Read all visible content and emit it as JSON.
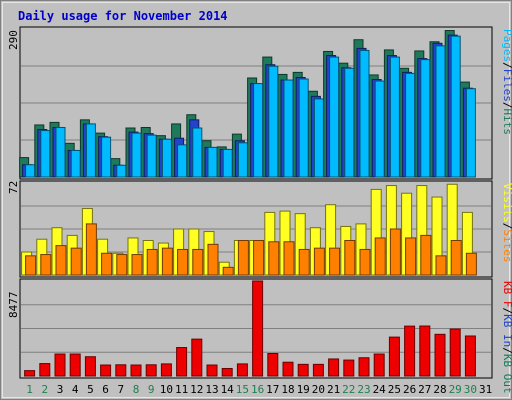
{
  "title": "Daily usage for November 2014",
  "colors": {
    "background": "#C0C0C0",
    "panel_border": "#000000",
    "title": "#0000CC",
    "hits": "#1F7A5C",
    "files": "#2244CC",
    "pages": "#00BBFF",
    "visits": "#FFFF22",
    "sites": "#FF8000",
    "kb_f": "#EE0000",
    "kb_in": "#1E40C8",
    "kb_out": "#157A55",
    "weekend_day": "#1E8050",
    "weekday_day": "#000000"
  },
  "chart_data": [
    {
      "type": "bar",
      "panel": "top",
      "ylim": [
        0,
        290
      ],
      "ytick_label": "290",
      "legend": [
        {
          "text": "Pages",
          "color": "#00BBFF"
        },
        {
          "text": "/",
          "color": "#000000"
        },
        {
          "text": "Files",
          "color": "#2244CC"
        },
        {
          "text": "/",
          "color": "#000000"
        },
        {
          "text": "Hits",
          "color": "#1F7A5C"
        }
      ],
      "categories": [
        "1",
        "2",
        "3",
        "4",
        "5",
        "6",
        "7",
        "8",
        "9",
        "10",
        "11",
        "12",
        "13",
        "14",
        "15",
        "16",
        "17",
        "18",
        "19",
        "20",
        "21",
        "22",
        "23",
        "24",
        "25",
        "26",
        "27",
        "28",
        "29",
        "30",
        "31"
      ],
      "series": [
        {
          "name": "Hits",
          "color": "#1F7A5C",
          "values": [
            38,
            102,
            107,
            66,
            112,
            86,
            36,
            96,
            97,
            81,
            104,
            122,
            71,
            59,
            84,
            194,
            235,
            201,
            205,
            168,
            246,
            223,
            269,
            200,
            249,
            213,
            247,
            265,
            287,
            186,
            null
          ]
        },
        {
          "name": "Files",
          "color": "#2244CC",
          "values": [
            24,
            93,
            97,
            52,
            104,
            79,
            23,
            88,
            85,
            74,
            76,
            112,
            58,
            54,
            71,
            183,
            220,
            190,
            195,
            158,
            238,
            214,
            252,
            191,
            238,
            205,
            232,
            262,
            278,
            174,
            null
          ]
        },
        {
          "name": "Pages",
          "color": "#00BBFF",
          "values": [
            24,
            91,
            97,
            52,
            104,
            78,
            23,
            86,
            82,
            74,
            63,
            96,
            58,
            54,
            67,
            183,
            217,
            190,
            192,
            153,
            235,
            213,
            248,
            188,
            235,
            203,
            230,
            257,
            276,
            173,
            null
          ]
        }
      ]
    },
    {
      "type": "bar",
      "panel": "middle",
      "ylim": [
        0,
        72
      ],
      "ytick_label": "72",
      "legend": [
        {
          "text": "Visits",
          "color": "#FFFF22"
        },
        {
          "text": "/",
          "color": "#000000"
        },
        {
          "text": "Sites",
          "color": "#FF8000"
        }
      ],
      "categories": [
        "1",
        "2",
        "3",
        "4",
        "5",
        "6",
        "7",
        "8",
        "9",
        "10",
        "11",
        "12",
        "13",
        "14",
        "15",
        "16",
        "17",
        "18",
        "19",
        "20",
        "21",
        "22",
        "23",
        "24",
        "25",
        "26",
        "27",
        "28",
        "29",
        "30",
        "31"
      ],
      "series": [
        {
          "name": "Visits",
          "color": "#FFFF22",
          "values": [
            18,
            28,
            37,
            31,
            52,
            28,
            17,
            29,
            27,
            25,
            36,
            36,
            34,
            10,
            27,
            27,
            49,
            50,
            48,
            37,
            55,
            38,
            40,
            67,
            70,
            64,
            70,
            61,
            71,
            49,
            null
          ]
        },
        {
          "name": "Sites",
          "color": "#FF8000",
          "values": [
            15,
            16,
            23,
            21,
            40,
            17,
            16,
            16,
            20,
            21,
            20,
            20,
            24,
            6,
            27,
            27,
            26,
            26,
            20,
            21,
            21,
            27,
            20,
            29,
            36,
            29,
            31,
            15,
            27,
            17,
            null
          ]
        }
      ]
    },
    {
      "type": "bar",
      "panel": "bottom",
      "ylim": [
        0,
        8477
      ],
      "ytick_label": "8477",
      "legend": [
        {
          "text": "KB F",
          "color": "#EE0000"
        },
        {
          "text": "/",
          "color": "#000000"
        },
        {
          "text": "KB In",
          "color": "#1E40C8"
        },
        {
          "text": "/",
          "color": "#000000"
        },
        {
          "text": "KB Out",
          "color": "#157A55"
        }
      ],
      "categories": [
        "1",
        "2",
        "3",
        "4",
        "5",
        "6",
        "7",
        "8",
        "9",
        "10",
        "11",
        "12",
        "13",
        "14",
        "15",
        "16",
        "17",
        "18",
        "19",
        "20",
        "21",
        "22",
        "23",
        "24",
        "25",
        "26",
        "27",
        "28",
        "29",
        "30",
        "31"
      ],
      "series": [
        {
          "name": "KB F",
          "color": "#EE0000",
          "values": [
            480,
            1110,
            1960,
            1960,
            1720,
            980,
            1000,
            980,
            1000,
            1080,
            2540,
            3290,
            980,
            670,
            1080,
            8477,
            2010,
            1230,
            1040,
            1040,
            1520,
            1420,
            1630,
            1960,
            3470,
            4450,
            4460,
            3720,
            4190,
            3570,
            null
          ]
        }
      ]
    }
  ],
  "days": [
    {
      "label": "1",
      "weekend": true
    },
    {
      "label": "2",
      "weekend": true
    },
    {
      "label": "3",
      "weekend": false
    },
    {
      "label": "4",
      "weekend": false
    },
    {
      "label": "5",
      "weekend": false
    },
    {
      "label": "6",
      "weekend": false
    },
    {
      "label": "7",
      "weekend": false
    },
    {
      "label": "8",
      "weekend": true
    },
    {
      "label": "9",
      "weekend": true
    },
    {
      "label": "10",
      "weekend": false
    },
    {
      "label": "11",
      "weekend": false
    },
    {
      "label": "12",
      "weekend": false
    },
    {
      "label": "13",
      "weekend": false
    },
    {
      "label": "14",
      "weekend": false
    },
    {
      "label": "15",
      "weekend": true
    },
    {
      "label": "16",
      "weekend": true
    },
    {
      "label": "17",
      "weekend": false
    },
    {
      "label": "18",
      "weekend": false
    },
    {
      "label": "19",
      "weekend": false
    },
    {
      "label": "20",
      "weekend": false
    },
    {
      "label": "21",
      "weekend": false
    },
    {
      "label": "22",
      "weekend": true
    },
    {
      "label": "23",
      "weekend": true
    },
    {
      "label": "24",
      "weekend": false
    },
    {
      "label": "25",
      "weekend": false
    },
    {
      "label": "26",
      "weekend": false
    },
    {
      "label": "27",
      "weekend": false
    },
    {
      "label": "28",
      "weekend": false
    },
    {
      "label": "29",
      "weekend": true
    },
    {
      "label": "30",
      "weekend": true
    },
    {
      "label": "31",
      "weekend": false
    }
  ]
}
